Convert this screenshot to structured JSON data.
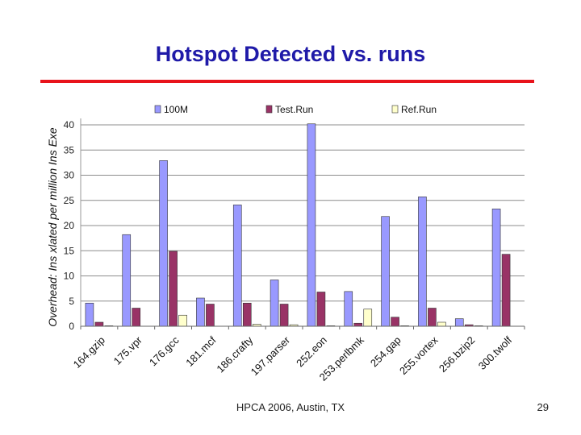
{
  "slide": {
    "title": "Hotspot Detected vs. runs",
    "footer": "HPCA 2006, Austin, TX",
    "page_number": "29",
    "rule_color": "#e8131b",
    "title_color": "#1f1aa8"
  },
  "chart_data": {
    "type": "bar",
    "title": "",
    "xlabel": "",
    "ylabel": "Overhead: Ins xlated per million Ins Exe",
    "ylim": [
      0,
      40
    ],
    "yticks": [
      "0",
      "5",
      "10",
      "15",
      "20",
      "25",
      "30",
      "35",
      "40"
    ],
    "grid": true,
    "legend_position": "top",
    "categories": [
      "164.gzip",
      "175.vpr",
      "176.gcc",
      "181.mcf",
      "186.crafty",
      "197.parser",
      "252.eon",
      "253.perlbmk",
      "254.gap",
      "255.vortex",
      "256.bzip2",
      "300.twolf"
    ],
    "series": [
      {
        "name": "100M",
        "color": "#9999ff",
        "values": [
          4.6,
          18.2,
          32.9,
          5.6,
          24.1,
          9.2,
          40.2,
          6.9,
          21.8,
          25.7,
          1.5,
          23.3
        ]
      },
      {
        "name": "Test.Run",
        "color": "#993366",
        "values": [
          0.8,
          3.6,
          14.9,
          4.4,
          4.6,
          4.4,
          6.8,
          0.6,
          1.8,
          3.6,
          0.3,
          14.3
        ]
      },
      {
        "name": "Ref.Run",
        "color": "#ffffcc",
        "values": [
          0.1,
          0.0,
          2.2,
          0.0,
          0.4,
          0.3,
          0.1,
          3.4,
          0.1,
          0.8,
          0.1,
          0.0
        ]
      }
    ]
  }
}
